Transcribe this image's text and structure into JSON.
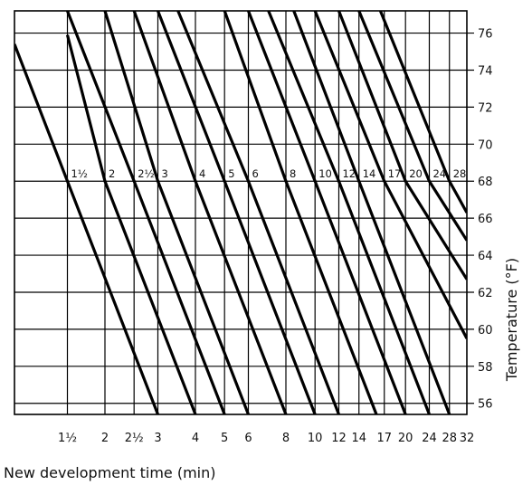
{
  "chart_data": {
    "type": "line",
    "title": "",
    "xlabel": "New development time (min)",
    "ylabel": "Temperature (°F)",
    "x_scale": "log",
    "xlim": [
      1.0,
      32
    ],
    "ylim": [
      55.4,
      77.2
    ],
    "grid": true,
    "x_ticks": [
      {
        "value": 1.5,
        "label": "1½"
      },
      {
        "value": 2,
        "label": "2"
      },
      {
        "value": 2.5,
        "label": "2½"
      },
      {
        "value": 3,
        "label": "3"
      },
      {
        "value": 4,
        "label": "4"
      },
      {
        "value": 5,
        "label": "5"
      },
      {
        "value": 6,
        "label": "6"
      },
      {
        "value": 8,
        "label": "8"
      },
      {
        "value": 10,
        "label": "10"
      },
      {
        "value": 12,
        "label": "12"
      },
      {
        "value": 14,
        "label": "14"
      },
      {
        "value": 17,
        "label": "17"
      },
      {
        "value": 20,
        "label": "20"
      },
      {
        "value": 24,
        "label": "24"
      },
      {
        "value": 28,
        "label": "28"
      },
      {
        "value": 32,
        "label": "32"
      }
    ],
    "y_ticks": [
      56,
      58,
      60,
      62,
      64,
      66,
      68,
      70,
      72,
      74,
      76
    ],
    "reference_temperature": 68,
    "series": [
      {
        "name": "1½",
        "points": [
          [
            1.0,
            75.4
          ],
          [
            1.5,
            68
          ],
          [
            3.0,
            55.4
          ]
        ]
      },
      {
        "name": "2",
        "points": [
          [
            1.5,
            75.9
          ],
          [
            2,
            68
          ],
          [
            4.0,
            55.4
          ]
        ]
      },
      {
        "name": "2½",
        "points": [
          [
            1.5,
            77.2
          ],
          [
            2.5,
            68
          ],
          [
            5.0,
            55.4
          ]
        ]
      },
      {
        "name": "3",
        "points": [
          [
            2,
            77.2
          ],
          [
            3,
            68
          ],
          [
            6.0,
            55.4
          ]
        ]
      },
      {
        "name": "4",
        "points": [
          [
            2.5,
            77.2
          ],
          [
            4,
            68
          ],
          [
            8.0,
            55.4
          ]
        ]
      },
      {
        "name": "5",
        "points": [
          [
            3,
            77.2
          ],
          [
            5,
            68
          ],
          [
            10.0,
            55.4
          ]
        ]
      },
      {
        "name": "6",
        "points": [
          [
            3.5,
            77.2
          ],
          [
            6,
            68
          ],
          [
            12.0,
            55.4
          ]
        ]
      },
      {
        "name": "8",
        "points": [
          [
            5,
            77.2
          ],
          [
            8,
            68
          ],
          [
            16.0,
            55.4
          ]
        ]
      },
      {
        "name": "10",
        "points": [
          [
            6,
            77.2
          ],
          [
            10,
            68
          ],
          [
            20.0,
            55.4
          ]
        ]
      },
      {
        "name": "12",
        "points": [
          [
            7,
            77.2
          ],
          [
            12,
            68
          ],
          [
            24.0,
            55.4
          ]
        ]
      },
      {
        "name": "14",
        "points": [
          [
            8.5,
            77.2
          ],
          [
            14,
            68
          ],
          [
            28.0,
            55.4
          ]
        ]
      },
      {
        "name": "17",
        "points": [
          [
            10,
            77.2
          ],
          [
            17,
            68
          ],
          [
            32,
            59.5
          ]
        ]
      },
      {
        "name": "20",
        "points": [
          [
            12,
            77.2
          ],
          [
            20,
            68
          ],
          [
            32,
            62.7
          ]
        ]
      },
      {
        "name": "24",
        "points": [
          [
            14,
            77.2
          ],
          [
            24,
            68
          ],
          [
            32,
            64.8
          ]
        ]
      },
      {
        "name": "28",
        "points": [
          [
            16.5,
            77.2
          ],
          [
            28,
            68
          ],
          [
            32,
            66.3
          ]
        ]
      }
    ]
  }
}
